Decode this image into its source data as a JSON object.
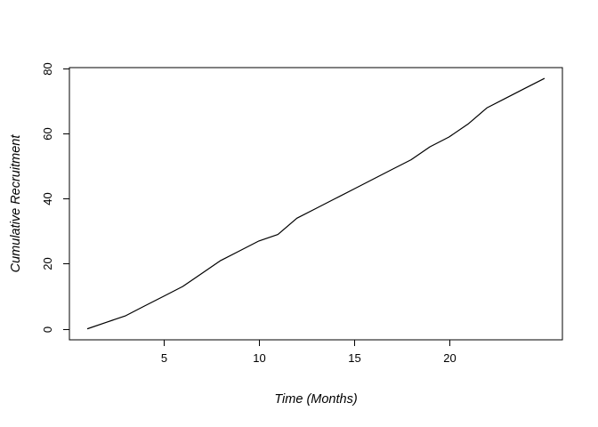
{
  "figure": {
    "background": "#ffffff",
    "title": ""
  },
  "chart_data": {
    "type": "line",
    "title": "",
    "xlabel": "Time (Months)",
    "ylabel": "Cumulative Recruitment",
    "x": [
      1,
      2,
      3,
      4,
      5,
      6,
      7,
      8,
      9,
      10,
      11,
      12,
      13,
      14,
      15,
      16,
      17,
      18,
      19,
      20,
      21,
      22,
      23,
      24,
      25
    ],
    "values": [
      0,
      2,
      4,
      7,
      10,
      13,
      17,
      21,
      24,
      27,
      29,
      34,
      37,
      40,
      43,
      46,
      49,
      52,
      56,
      59,
      63,
      68,
      71,
      74,
      77
    ],
    "series_name": "cumulative-recruitment",
    "x_ticks": [
      5,
      10,
      15,
      20
    ],
    "y_ticks": [
      0,
      20,
      40,
      60,
      80
    ],
    "x_tick_labels": [
      "5",
      "10",
      "15",
      "20"
    ],
    "y_tick_labels": [
      "0",
      "20",
      "40",
      "60",
      "80"
    ],
    "xlim": [
      0.04,
      25.96
    ],
    "ylim": [
      -3.42,
      80.36
    ],
    "grid": false,
    "legend_position": "none",
    "box_frame": true,
    "line_color": "#000000",
    "axis_color": "#000000",
    "text_color": "#000000",
    "label_style": "italic",
    "marker": "none"
  }
}
